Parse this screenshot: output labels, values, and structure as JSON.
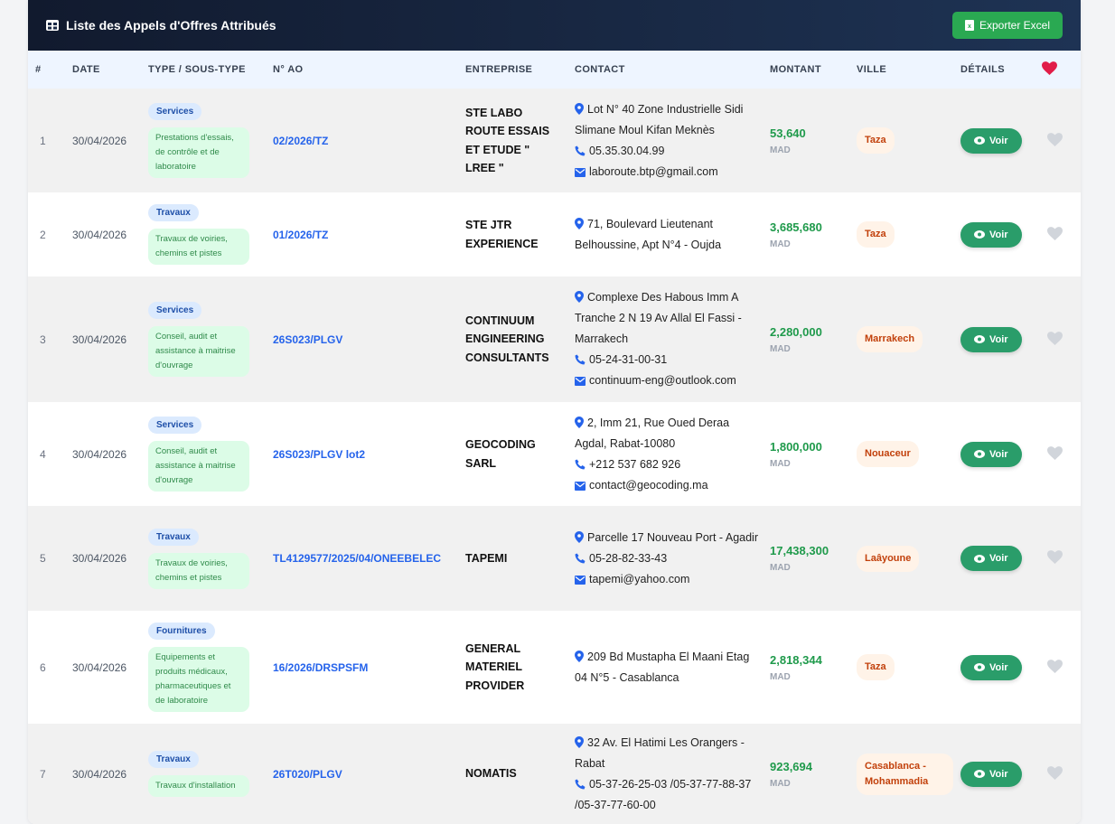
{
  "header": {
    "title": "Liste des Appels d'Offres Attribués",
    "export_button": "Exporter Excel"
  },
  "table": {
    "columns": [
      "#",
      "DATE",
      "TYPE / SOUS-TYPE",
      "N° AO",
      "ENTREPRISE",
      "CONTACT",
      "MONTANT",
      "VILLE",
      "DÉTAILS"
    ],
    "rows": [
      {
        "index": "1",
        "date": "30/04/2026",
        "type": "Services",
        "subtype": "Prestations d'essais, de contrôle et de laboratoire",
        "ao": "02/2026/TZ",
        "company": "STE LABO ROUTE ESSAIS ET ETUDE \" LREE \"",
        "address": "Lot N° 40 Zone Industrielle Sidi Slimane Moul Kifan Meknès",
        "phone": "05.35.30.04.99",
        "email": "laboroute.btp@gmail.com",
        "amount": "53,640",
        "currency": "MAD",
        "city": "Taza",
        "action": "Voir"
      },
      {
        "index": "2",
        "date": "30/04/2026",
        "type": "Travaux",
        "subtype": "Travaux de voiries, chemins et pistes",
        "ao": "01/2026/TZ",
        "company": "STE JTR EXPERIENCE",
        "address": "71, Boulevard Lieutenant Belhoussine, Apt N°4 - Oujda",
        "amount": "3,685,680",
        "currency": "MAD",
        "city": "Taza",
        "action": "Voir"
      },
      {
        "index": "3",
        "date": "30/04/2026",
        "type": "Services",
        "subtype": "Conseil, audit et assistance à maitrise d'ouvrage",
        "ao": "26S023/PLGV",
        "company": "CONTINUUM ENGINEERING CONSULTANTS",
        "address": "Complexe Des Habous Imm A Tranche 2 N 19 Av Allal El Fassi - Marrakech",
        "phone": "05-24-31-00-31",
        "email": "continuum-eng@outlook.com",
        "amount": "2,280,000",
        "currency": "MAD",
        "city": "Marrakech",
        "action": "Voir"
      },
      {
        "index": "4",
        "date": "30/04/2026",
        "type": "Services",
        "subtype": "Conseil, audit et assistance à maitrise d'ouvrage",
        "ao": "26S023/PLGV lot2",
        "company": "GEOCODING SARL",
        "address": "2, Imm 21, Rue Oued Deraa Agdal, Rabat-10080",
        "phone": "+212 537 682 926",
        "email": "contact@geocoding.ma",
        "amount": "1,800,000",
        "currency": "MAD",
        "city": "Nouaceur",
        "action": "Voir"
      },
      {
        "index": "5",
        "date": "30/04/2026",
        "type": "Travaux",
        "subtype": "Travaux de voiries, chemins et pistes",
        "ao": "TL4129577/2025/04/ONEEBELEC",
        "company": "TAPEMI",
        "address": "Parcelle 17 Nouveau Port - Agadir",
        "phone": "05-28-82-33-43",
        "email": "tapemi@yahoo.com",
        "amount": "17,438,300",
        "currency": "MAD",
        "city": "Laâyoune",
        "action": "Voir"
      },
      {
        "index": "6",
        "date": "30/04/2026",
        "type": "Fournitures",
        "subtype": "Equipements et produits médicaux, pharmaceutiques et de laboratoire",
        "ao": "16/2026/DRSPSFM",
        "company": "GENERAL MATERIEL PROVIDER",
        "address": "209 Bd Mustapha El Maani Etag 04 N°5 - Casablanca",
        "amount": "2,818,344",
        "currency": "MAD",
        "city": "Taza",
        "action": "Voir"
      },
      {
        "index": "7",
        "date": "30/04/2026",
        "type": "Travaux",
        "subtype": "Travaux d'installation",
        "ao": "26T020/PLGV",
        "company": "NOMATIS",
        "address": "32 Av. El Hatimi Les Orangers - Rabat",
        "phone": "05-37-26-25-03 /05-37-77-88-37 /05-37-77-60-00",
        "amount": "923,694",
        "currency": "MAD",
        "city": "Casablanca - Mohammadia",
        "action": "Voir"
      }
    ]
  }
}
